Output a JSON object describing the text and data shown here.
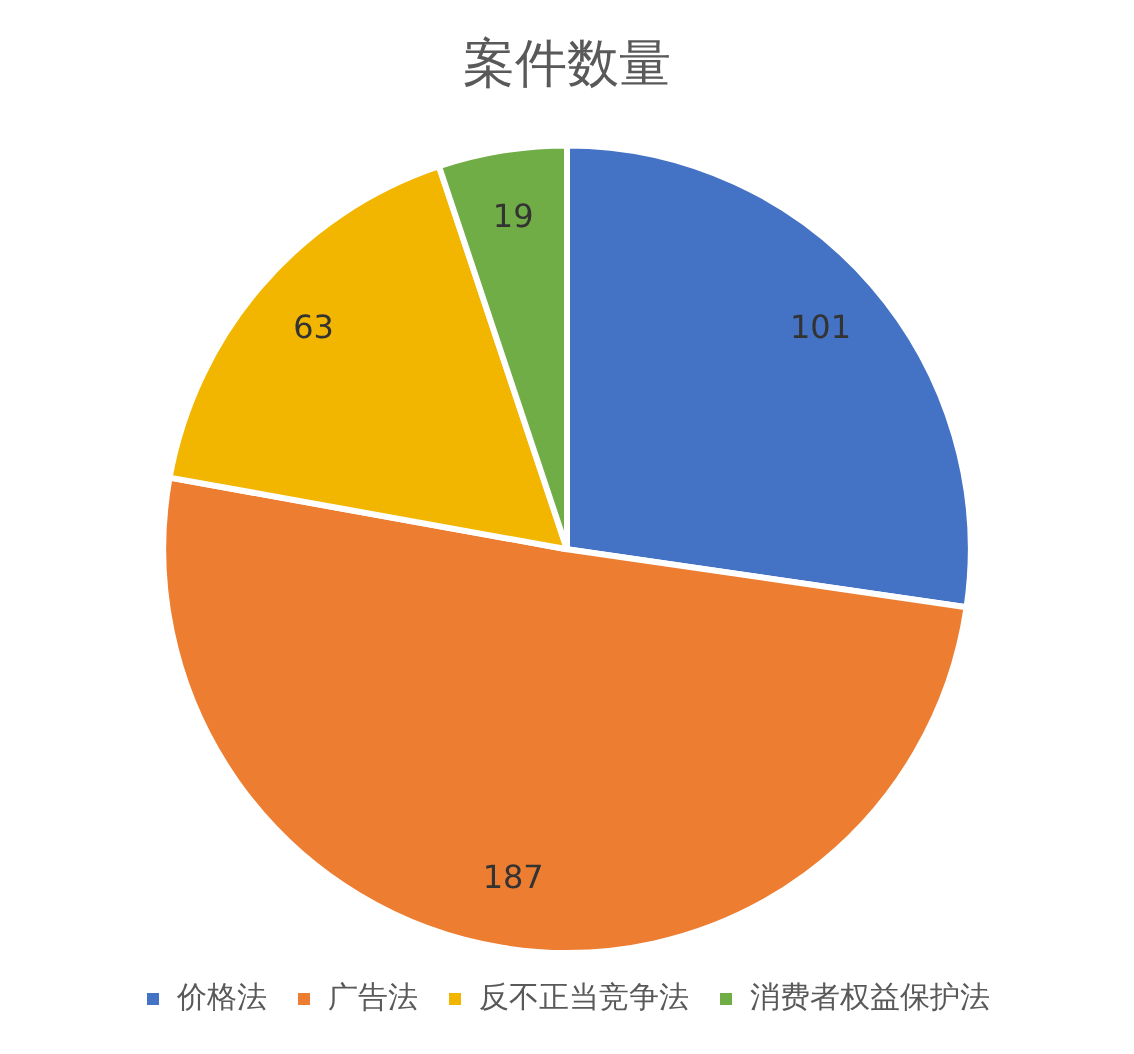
{
  "chart_data": {
    "type": "pie",
    "title": "案件数量",
    "categories": [
      "价格法",
      "广告法",
      "反不正当竞争法",
      "消费者权益保护法"
    ],
    "values": [
      101,
      187,
      63,
      19
    ],
    "colors": [
      "#4472c4",
      "#ed7d31",
      "#f2b600",
      "#70ad47"
    ],
    "data_labels": true,
    "legend": "bottom"
  }
}
